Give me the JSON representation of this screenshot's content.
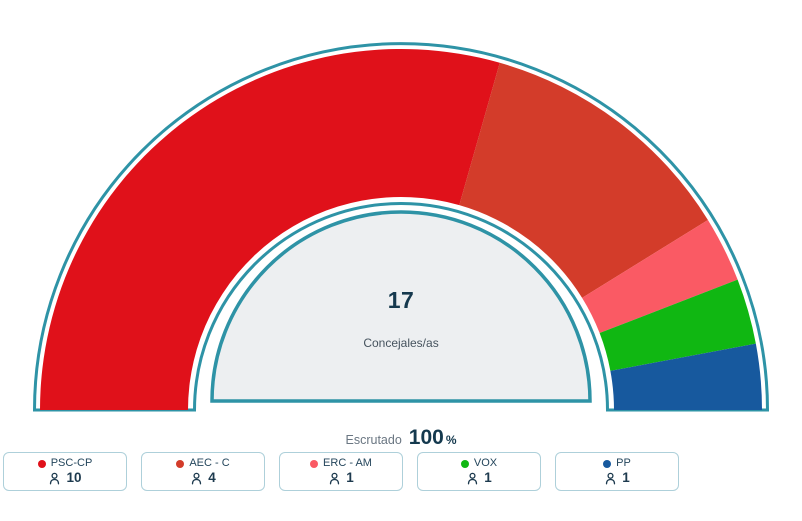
{
  "chart_data": {
    "type": "pie",
    "variant": "half-donut-gauge",
    "title": "",
    "center_value": 17,
    "center_label": "Concejales/as",
    "total_seats": 17,
    "start_angle": 180,
    "end_angle": 0,
    "legend_position": "bottom",
    "series": [
      {
        "name": "PSC-CP",
        "seats": 10,
        "color": "#e0111a"
      },
      {
        "name": "AEC - C",
        "seats": 4,
        "color": "#d33c2a"
      },
      {
        "name": "ERC - AM",
        "seats": 1,
        "color": "#fa5a64"
      },
      {
        "name": "VOX",
        "seats": 1,
        "color": "#10b712"
      },
      {
        "name": "PP",
        "seats": 1,
        "color": "#17599e"
      }
    ]
  },
  "center": {
    "value": "17",
    "label": "Concejales/as"
  },
  "scrutiny": {
    "label": "Escrutado",
    "value": "100",
    "unit": "%"
  },
  "colors": {
    "ring": "#2e93a6",
    "inner_dome_fill": "#edeff1",
    "card_border": "#aed0da",
    "party_label_text": "#24465c",
    "count_text": "#1d3a4e",
    "muted_text": "#6a7682",
    "value_text": "#14394e"
  }
}
